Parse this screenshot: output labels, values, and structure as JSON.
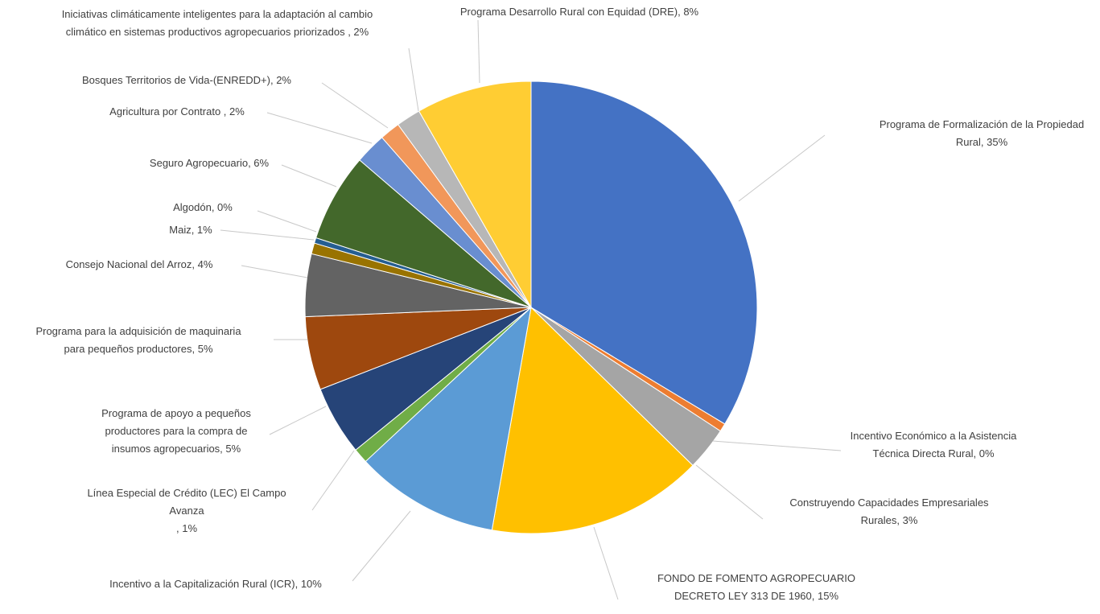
{
  "chart_data": {
    "type": "pie",
    "title": "",
    "slices": [
      {
        "label": "Programa de Formalización de la Propiedad Rural",
        "value": 35,
        "pct_label": "35%",
        "color": "#4472C4"
      },
      {
        "label": "Incentivo Económico a la Asistencia Técnica Directa Rural",
        "value": 0,
        "pct_label": "0%",
        "color": "#ED7D31"
      },
      {
        "label": "Construyendo Capacidades Empresariales Rurales",
        "value": 3,
        "pct_label": "3%",
        "color": "#A5A5A5"
      },
      {
        "label": "FONDO DE FOMENTO AGROPECUARIO DECRETO LEY 313 DE 1960",
        "value": 15,
        "pct_label": "15%",
        "color": "#FFC000"
      },
      {
        "label": "Incentivo a la Capitalización Rural (ICR)",
        "value": 10,
        "pct_label": "10%",
        "color": "#5B9BD5"
      },
      {
        "label": "Línea Especial de Crédito (LEC) El Campo Avanza",
        "value": 1,
        "pct_label": "1%",
        "color": "#70AD47"
      },
      {
        "label": "Programa de apoyo a pequeños productores para la compra de insumos agropecuarios",
        "value": 5,
        "pct_label": "5%",
        "color": "#264478"
      },
      {
        "label": "Programa para la adquisición de maquinaria para pequeños productores",
        "value": 5,
        "pct_label": "5%",
        "color": "#9E480E"
      },
      {
        "label": "Consejo Nacional del Arroz",
        "value": 4,
        "pct_label": "4%",
        "color": "#636363"
      },
      {
        "label": "Maiz",
        "value": 1,
        "pct_label": "1%",
        "color": "#997300"
      },
      {
        "label": "Algodón",
        "value": 0,
        "pct_label": "0%",
        "color": "#255E91"
      },
      {
        "label": "Seguro Agropecuario",
        "value": 6,
        "pct_label": "6%",
        "color": "#43682B"
      },
      {
        "label": "Agricultura por Contrato",
        "value": 2,
        "pct_label": "2%",
        "color": "#698ED0"
      },
      {
        "label": "Bosques Territorios de Vida-(ENREDD+)",
        "value": 2,
        "pct_label": "2%",
        "color": "#F1975A"
      },
      {
        "label": "Iniciativas climáticamente inteligentes para la adaptación al cambio climático en sistemas productivos agropecuarios priorizados",
        "value": 2,
        "pct_label": "2%",
        "color": "#B7B7B7"
      },
      {
        "label": "Programa Desarrollo Rural con Equidad (DRE)",
        "value": 8,
        "pct_label": "8%",
        "color": "#FFCD33"
      }
    ],
    "label_lines": [
      [
        "Programa de Formalización de la Propiedad",
        "Rural, 35%"
      ],
      [
        "Incentivo Económico a la Asistencia",
        "Técnica Directa Rural, 0%"
      ],
      [
        "Construyendo Capacidades Empresariales",
        "Rurales, 3%"
      ],
      [
        "FONDO DE FOMENTO AGROPECUARIO",
        "DECRETO LEY 313 DE 1960, 15%"
      ],
      [
        "Incentivo a la Capitalización Rural (ICR), 10%"
      ],
      [
        "Línea Especial de Crédito (LEC) El Campo",
        "Avanza",
        ", 1%"
      ],
      [
        "Programa de apoyo a pequeños",
        "productores para la compra de",
        "insumos agropecuarios, 5%"
      ],
      [
        "Programa para la adquisición de maquinaria",
        "para pequeños productores, 5%"
      ],
      [
        "Consejo Nacional del Arroz, 4%"
      ],
      [
        "Maiz, 1%"
      ],
      [
        "Algodón, 0%"
      ],
      [
        "Seguro Agropecuario, 6%"
      ],
      [
        "Agricultura por Contrato , 2%"
      ],
      [
        "Bosques Territorios de Vida-(ENREDD+), 2%"
      ],
      [
        "Iniciativas climáticamente inteligentes para la adaptación al cambio",
        "climático en sistemas productivos agropecuarios priorizados , 2%"
      ],
      [
        "Programa Desarrollo Rural con Equidad (DRE), 8%"
      ]
    ],
    "legend": "none",
    "data_labels": "outside with leader lines"
  }
}
